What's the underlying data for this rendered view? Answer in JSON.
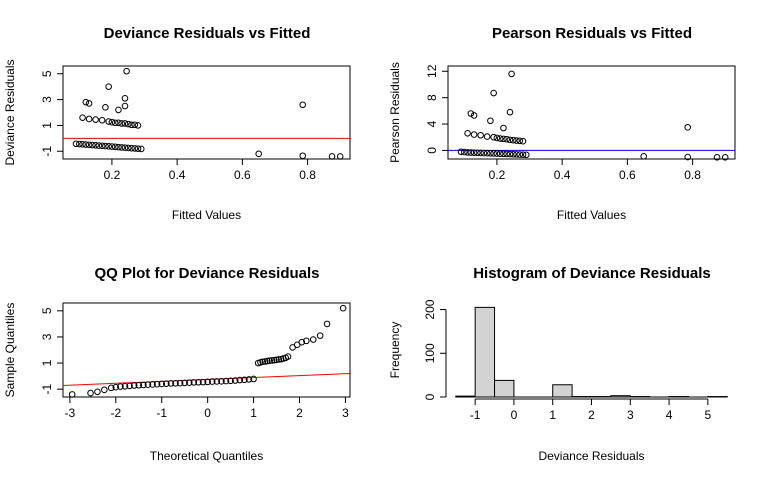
{
  "chart_data": [
    {
      "id": "p1",
      "type": "scatter",
      "title": "Deviance Residuals vs Fitted",
      "xlabel": "Fitted Values",
      "ylabel": "Deviance Residuals",
      "xlim": [
        0.05,
        0.93
      ],
      "ylim": [
        -1.6,
        5.6
      ],
      "xticks": [
        0.2,
        0.4,
        0.6,
        0.8
      ],
      "xtick_labels": [
        "0.2",
        "0.4",
        "0.6",
        "0.8"
      ],
      "yticks": [
        -1,
        1,
        3,
        5
      ],
      "ytick_labels": [
        "-1",
        "1",
        "3",
        "5"
      ],
      "hline": {
        "y": 0,
        "color": "#ff0000"
      },
      "points": [
        [
          0.245,
          5.2
        ],
        [
          0.19,
          4.0
        ],
        [
          0.24,
          3.1
        ],
        [
          0.22,
          2.2
        ],
        [
          0.12,
          2.8
        ],
        [
          0.13,
          2.7
        ],
        [
          0.18,
          2.4
        ],
        [
          0.24,
          2.5
        ],
        [
          0.785,
          2.6
        ],
        [
          0.11,
          1.6
        ],
        [
          0.13,
          1.5
        ],
        [
          0.15,
          1.45
        ],
        [
          0.17,
          1.4
        ],
        [
          0.19,
          1.3
        ],
        [
          0.2,
          1.25
        ],
        [
          0.21,
          1.2
        ],
        [
          0.22,
          1.2
        ],
        [
          0.23,
          1.15
        ],
        [
          0.24,
          1.15
        ],
        [
          0.25,
          1.1
        ],
        [
          0.26,
          1.05
        ],
        [
          0.27,
          1.05
        ],
        [
          0.28,
          1.0
        ],
        [
          0.09,
          -0.42
        ],
        [
          0.1,
          -0.44
        ],
        [
          0.11,
          -0.46
        ],
        [
          0.12,
          -0.48
        ],
        [
          0.13,
          -0.5
        ],
        [
          0.14,
          -0.52
        ],
        [
          0.15,
          -0.54
        ],
        [
          0.16,
          -0.56
        ],
        [
          0.17,
          -0.58
        ],
        [
          0.18,
          -0.6
        ],
        [
          0.19,
          -0.62
        ],
        [
          0.2,
          -0.64
        ],
        [
          0.21,
          -0.66
        ],
        [
          0.22,
          -0.68
        ],
        [
          0.23,
          -0.7
        ],
        [
          0.24,
          -0.72
        ],
        [
          0.25,
          -0.74
        ],
        [
          0.26,
          -0.76
        ],
        [
          0.27,
          -0.78
        ],
        [
          0.28,
          -0.8
        ],
        [
          0.29,
          -0.82
        ],
        [
          0.65,
          -1.2
        ],
        [
          0.785,
          -1.35
        ],
        [
          0.875,
          -1.4
        ],
        [
          0.9,
          -1.4
        ]
      ]
    },
    {
      "id": "p2",
      "type": "scatter",
      "title": "Pearson Residuals vs Fitted",
      "xlabel": "Fitted Values",
      "ylabel": "Pearson Residuals",
      "xlim": [
        0.05,
        0.93
      ],
      "ylim": [
        -1.3,
        12.8
      ],
      "xticks": [
        0.2,
        0.4,
        0.6,
        0.8
      ],
      "xtick_labels": [
        "0.2",
        "0.4",
        "0.6",
        "0.8"
      ],
      "yticks": [
        0,
        4,
        8,
        12
      ],
      "ytick_labels": [
        "0",
        "4",
        "8",
        "12"
      ],
      "hline": {
        "y": 0,
        "color": "#0000ff"
      },
      "points": [
        [
          0.245,
          11.6
        ],
        [
          0.19,
          8.7
        ],
        [
          0.24,
          5.8
        ],
        [
          0.12,
          5.6
        ],
        [
          0.13,
          5.3
        ],
        [
          0.18,
          4.5
        ],
        [
          0.785,
          3.5
        ],
        [
          0.22,
          3.4
        ],
        [
          0.11,
          2.6
        ],
        [
          0.13,
          2.4
        ],
        [
          0.15,
          2.3
        ],
        [
          0.17,
          2.1
        ],
        [
          0.19,
          2.0
        ],
        [
          0.2,
          1.9
        ],
        [
          0.21,
          1.8
        ],
        [
          0.22,
          1.75
        ],
        [
          0.23,
          1.7
        ],
        [
          0.24,
          1.6
        ],
        [
          0.25,
          1.55
        ],
        [
          0.26,
          1.5
        ],
        [
          0.27,
          1.45
        ],
        [
          0.28,
          1.4
        ],
        [
          0.09,
          -0.2
        ],
        [
          0.1,
          -0.25
        ],
        [
          0.11,
          -0.3
        ],
        [
          0.12,
          -0.32
        ],
        [
          0.13,
          -0.34
        ],
        [
          0.14,
          -0.36
        ],
        [
          0.15,
          -0.38
        ],
        [
          0.16,
          -0.4
        ],
        [
          0.17,
          -0.42
        ],
        [
          0.18,
          -0.44
        ],
        [
          0.19,
          -0.46
        ],
        [
          0.2,
          -0.48
        ],
        [
          0.21,
          -0.5
        ],
        [
          0.22,
          -0.52
        ],
        [
          0.23,
          -0.54
        ],
        [
          0.24,
          -0.56
        ],
        [
          0.25,
          -0.58
        ],
        [
          0.26,
          -0.6
        ],
        [
          0.27,
          -0.62
        ],
        [
          0.28,
          -0.64
        ],
        [
          0.29,
          -0.66
        ],
        [
          0.65,
          -0.9
        ],
        [
          0.785,
          -1.0
        ],
        [
          0.875,
          -1.05
        ],
        [
          0.9,
          -1.05
        ]
      ]
    },
    {
      "id": "p3",
      "type": "scatter",
      "title": "QQ Plot for Deviance Residuals",
      "xlabel": "Theoretical Quantiles",
      "ylabel": "Sample Quantiles",
      "xlim": [
        -3.15,
        3.1
      ],
      "ylim": [
        -1.6,
        5.6
      ],
      "xticks": [
        -3,
        -2,
        -1,
        0,
        1,
        2,
        3
      ],
      "xtick_labels": [
        "-3",
        "-2",
        "-1",
        "0",
        "1",
        "2",
        "3"
      ],
      "yticks": [
        -1,
        1,
        3,
        5
      ],
      "ytick_labels": [
        "-1",
        "1",
        "3",
        "5"
      ],
      "ref_line": {
        "x": [
          -3.15,
          3.1
        ],
        "y": [
          -0.72,
          0.2
        ],
        "color": "#ff0000"
      },
      "points": [
        [
          -2.95,
          -1.4
        ],
        [
          -2.55,
          -1.3
        ],
        [
          -2.4,
          -1.2
        ],
        [
          -2.25,
          -1.05
        ],
        [
          -2.1,
          -0.9
        ],
        [
          -2.0,
          -0.85
        ],
        [
          -1.9,
          -0.8
        ],
        [
          -1.8,
          -0.78
        ],
        [
          -1.7,
          -0.75
        ],
        [
          -1.6,
          -0.72
        ],
        [
          -1.5,
          -0.7
        ],
        [
          -1.4,
          -0.68
        ],
        [
          -1.3,
          -0.66
        ],
        [
          -1.2,
          -0.64
        ],
        [
          -1.1,
          -0.62
        ],
        [
          -1.0,
          -0.6
        ],
        [
          -0.9,
          -0.58
        ],
        [
          -0.8,
          -0.56
        ],
        [
          -0.7,
          -0.55
        ],
        [
          -0.6,
          -0.54
        ],
        [
          -0.5,
          -0.52
        ],
        [
          -0.4,
          -0.5
        ],
        [
          -0.3,
          -0.48
        ],
        [
          -0.2,
          -0.47
        ],
        [
          -0.1,
          -0.46
        ],
        [
          0.0,
          -0.44
        ],
        [
          0.1,
          -0.42
        ],
        [
          0.2,
          -0.41
        ],
        [
          0.3,
          -0.4
        ],
        [
          0.4,
          -0.38
        ],
        [
          0.5,
          -0.36
        ],
        [
          0.6,
          -0.34
        ],
        [
          0.7,
          -0.3
        ],
        [
          0.8,
          -0.28
        ],
        [
          0.9,
          -0.25
        ],
        [
          1.0,
          -0.22
        ],
        [
          1.1,
          1.0
        ],
        [
          1.15,
          1.05
        ],
        [
          1.2,
          1.1
        ],
        [
          1.25,
          1.12
        ],
        [
          1.3,
          1.15
        ],
        [
          1.35,
          1.18
        ],
        [
          1.4,
          1.2
        ],
        [
          1.45,
          1.22
        ],
        [
          1.5,
          1.25
        ],
        [
          1.55,
          1.28
        ],
        [
          1.6,
          1.3
        ],
        [
          1.65,
          1.35
        ],
        [
          1.7,
          1.4
        ],
        [
          1.75,
          1.5
        ],
        [
          1.85,
          2.2
        ],
        [
          1.95,
          2.4
        ],
        [
          2.05,
          2.6
        ],
        [
          2.15,
          2.7
        ],
        [
          2.3,
          2.8
        ],
        [
          2.45,
          3.1
        ],
        [
          2.6,
          4.0
        ],
        [
          2.95,
          5.2
        ]
      ]
    },
    {
      "id": "p4",
      "type": "bar",
      "title": "Histogram of Deviance Residuals",
      "xlabel": "Deviance Residuals",
      "ylabel": "Frequency",
      "xlim": [
        -1.7,
        5.7
      ],
      "ylim": [
        0,
        215
      ],
      "xticks": [
        -1,
        0,
        1,
        2,
        3,
        4,
        5
      ],
      "xtick_labels": [
        "-1",
        "0",
        "1",
        "2",
        "3",
        "4",
        "5"
      ],
      "yticks": [
        0,
        100,
        200
      ],
      "ytick_labels": [
        "0",
        "100",
        "200"
      ],
      "bins": [
        {
          "x0": -1.5,
          "x1": -1.0,
          "count": 2
        },
        {
          "x0": -1.0,
          "x1": -0.5,
          "count": 205
        },
        {
          "x0": -0.5,
          "x1": 0.0,
          "count": 38
        },
        {
          "x0": 0.0,
          "x1": 0.5,
          "count": 0
        },
        {
          "x0": 0.5,
          "x1": 1.0,
          "count": 0
        },
        {
          "x0": 1.0,
          "x1": 1.5,
          "count": 28
        },
        {
          "x0": 1.5,
          "x1": 2.0,
          "count": 1
        },
        {
          "x0": 2.0,
          "x1": 2.5,
          "count": 1
        },
        {
          "x0": 2.5,
          "x1": 3.0,
          "count": 3
        },
        {
          "x0": 3.0,
          "x1": 3.5,
          "count": 1
        },
        {
          "x0": 3.5,
          "x1": 4.0,
          "count": 0
        },
        {
          "x0": 4.0,
          "x1": 4.5,
          "count": 1
        },
        {
          "x0": 4.5,
          "x1": 5.0,
          "count": 0
        },
        {
          "x0": 5.0,
          "x1": 5.5,
          "count": 1
        }
      ],
      "bar_fill": "#d3d3d3",
      "bar_stroke": "#000000"
    }
  ]
}
